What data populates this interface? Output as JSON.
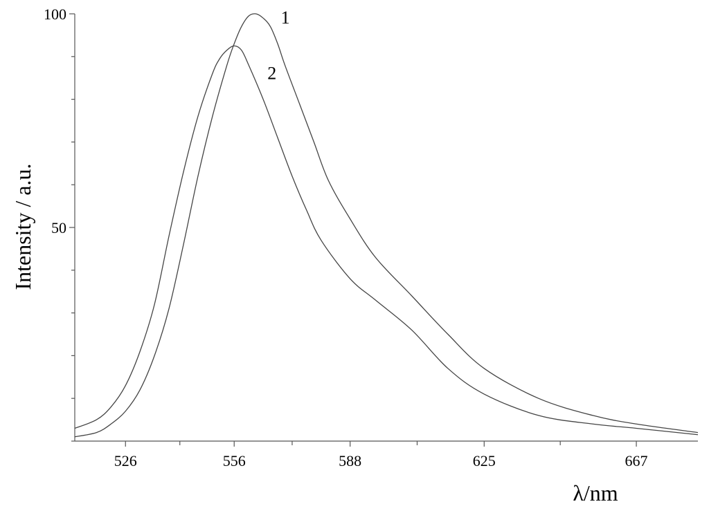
{
  "chart_data": {
    "type": "line",
    "xlabel": "λ/nm",
    "ylabel": "Intensity / a.u.",
    "xlim": [
      512,
      684
    ],
    "ylim": [
      0,
      100
    ],
    "x_ticks": [
      526,
      556,
      588,
      625,
      667
    ],
    "y_ticks": [
      50,
      100
    ],
    "grid": false,
    "series": [
      {
        "name": "1",
        "x": [
          512,
          518,
          522,
          526,
          530,
          534,
          538,
          542,
          546,
          550,
          554,
          556,
          558,
          560,
          562,
          564,
          566,
          568,
          570,
          574,
          578,
          582,
          588,
          595,
          605,
          615,
          625,
          640,
          655,
          667,
          684
        ],
        "values": [
          1,
          2,
          4,
          7,
          12,
          20,
          31,
          46,
          62,
          76,
          88,
          93,
          97,
          99.5,
          100,
          99,
          97,
          93,
          88,
          79,
          70,
          61,
          52,
          43,
          34,
          25,
          17,
          10,
          6,
          4,
          2
        ]
      },
      {
        "name": "2",
        "x": [
          512,
          518,
          522,
          526,
          530,
          534,
          538,
          542,
          546,
          550,
          552,
          554,
          556,
          558,
          560,
          564,
          568,
          572,
          576,
          580,
          588,
          595,
          605,
          615,
          625,
          640,
          655,
          667,
          684
        ],
        "values": [
          3,
          5,
          8,
          13,
          21,
          32,
          48,
          63,
          76,
          86,
          89.5,
          91.5,
          92.5,
          91.5,
          88,
          80,
          71,
          62,
          54,
          47,
          38,
          33,
          26,
          17,
          11,
          6,
          4,
          3,
          1.5
        ]
      }
    ]
  }
}
